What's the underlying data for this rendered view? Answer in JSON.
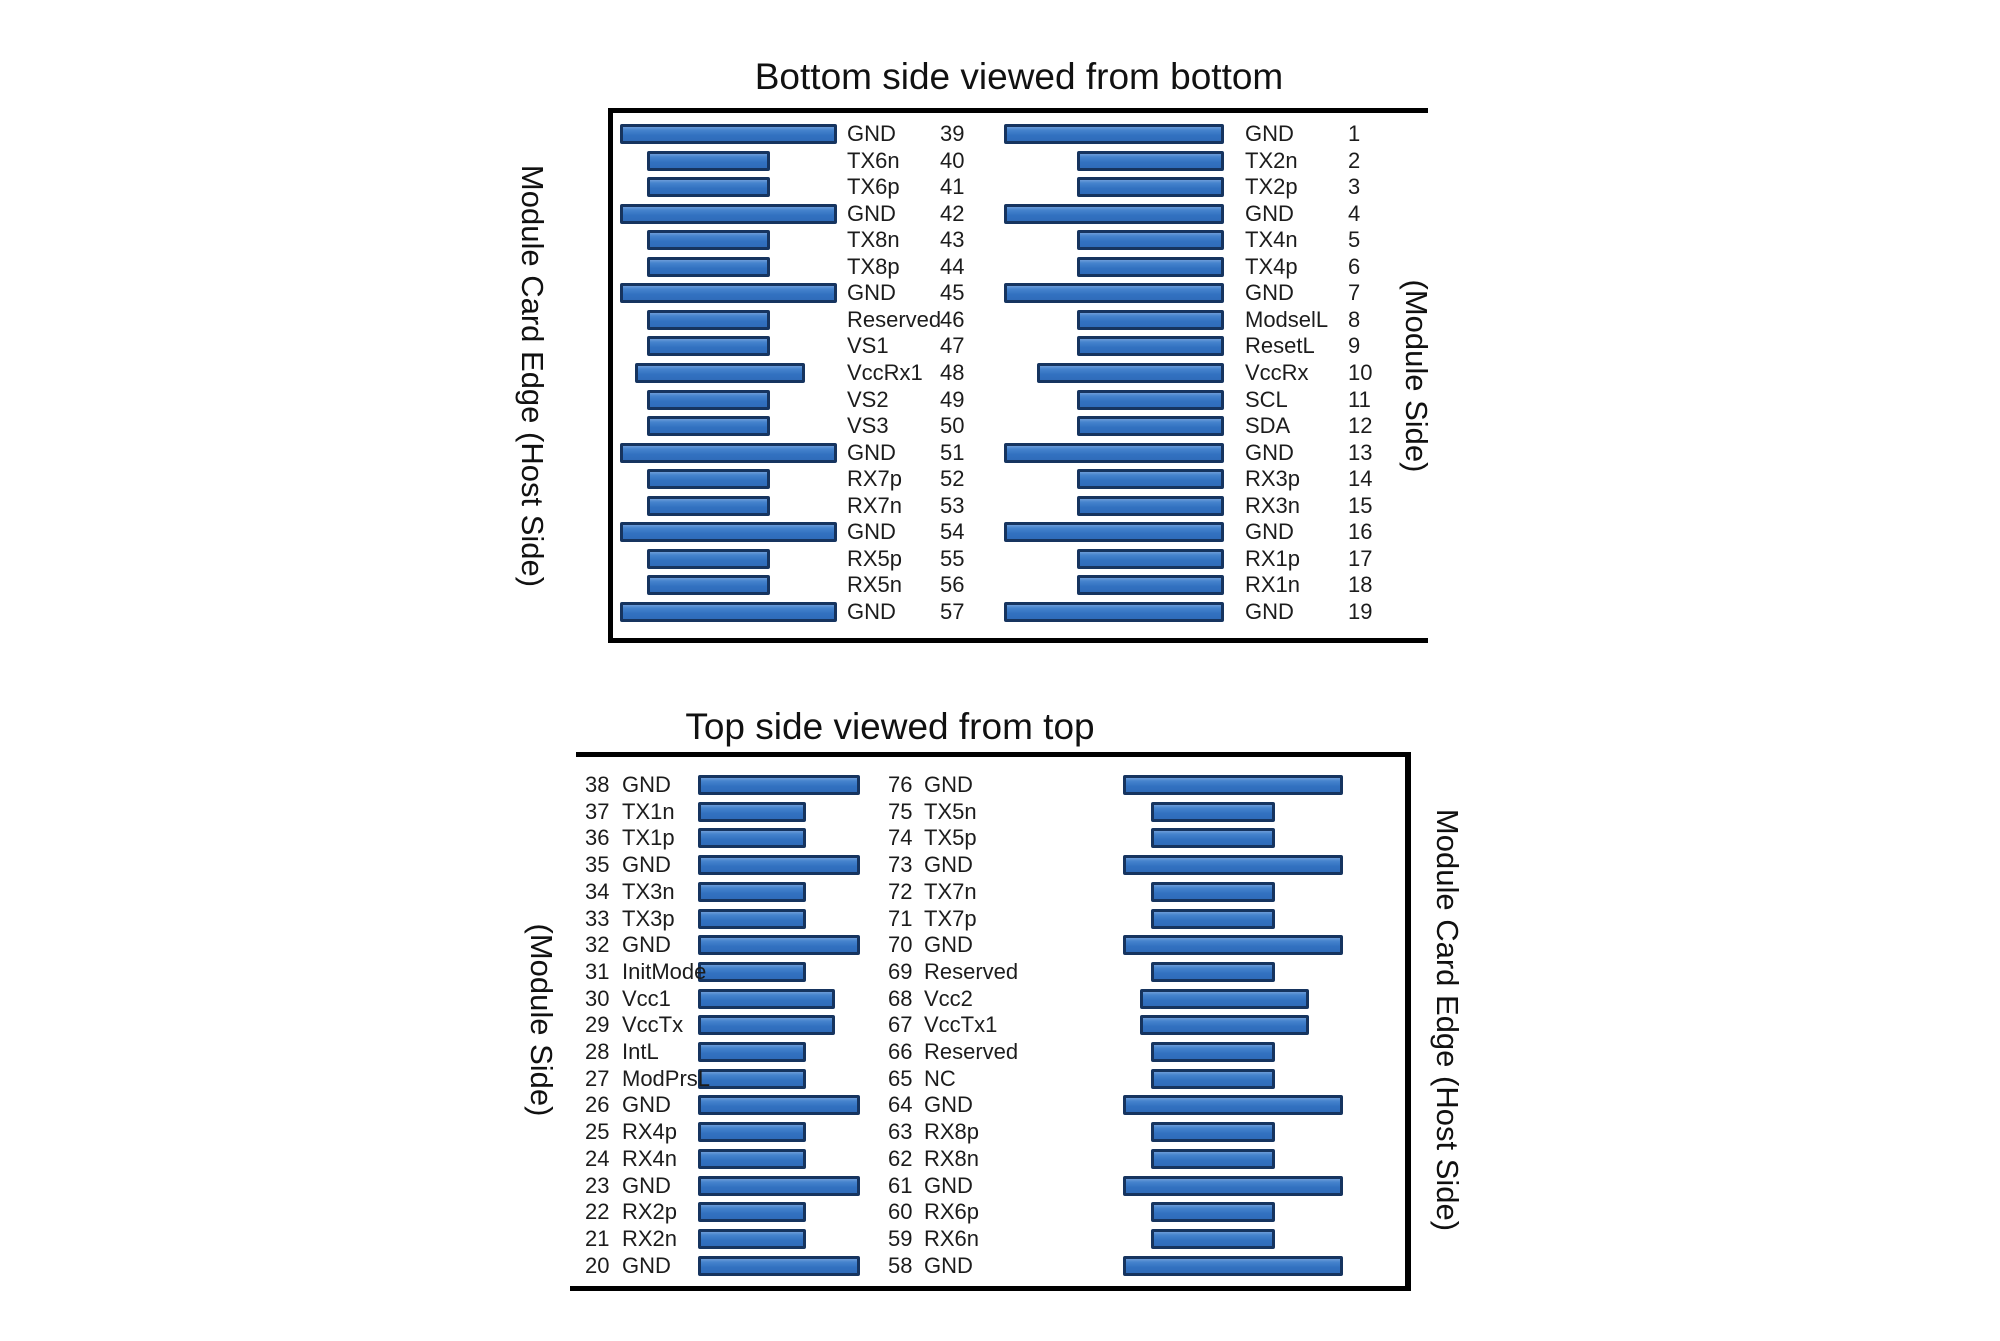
{
  "figure": {
    "description": "Connector card edge pinout, two views"
  },
  "colors": {
    "bar_fill": "#3271c0",
    "bar_border": "#16345f",
    "line": "#000000"
  },
  "diagrams": [
    {
      "title": "Bottom side viewed from bottom",
      "left_edge_label": "Module Card Edge (Host Side)",
      "right_edge_label": "(Module Side)",
      "left_pins": [
        {
          "num": "39",
          "label": "GND",
          "type": "gnd"
        },
        {
          "num": "40",
          "label": "TX6n",
          "type": "sig"
        },
        {
          "num": "41",
          "label": "TX6p",
          "type": "sig"
        },
        {
          "num": "42",
          "label": "GND",
          "type": "gnd"
        },
        {
          "num": "43",
          "label": "TX8n",
          "type": "sig"
        },
        {
          "num": "44",
          "label": "TX8p",
          "type": "sig"
        },
        {
          "num": "45",
          "label": "GND",
          "type": "gnd"
        },
        {
          "num": "46",
          "label": "Reserved",
          "type": "sig"
        },
        {
          "num": "47",
          "label": "VS1",
          "type": "sig"
        },
        {
          "num": "48",
          "label": "VccRx1",
          "type": "vcc"
        },
        {
          "num": "49",
          "label": "VS2",
          "type": "sig"
        },
        {
          "num": "50",
          "label": "VS3",
          "type": "sig"
        },
        {
          "num": "51",
          "label": "GND",
          "type": "gnd"
        },
        {
          "num": "52",
          "label": "RX7p",
          "type": "sig"
        },
        {
          "num": "53",
          "label": "RX7n",
          "type": "sig"
        },
        {
          "num": "54",
          "label": "GND",
          "type": "gnd"
        },
        {
          "num": "55",
          "label": "RX5p",
          "type": "sig"
        },
        {
          "num": "56",
          "label": "RX5n",
          "type": "sig"
        },
        {
          "num": "57",
          "label": "GND",
          "type": "gnd"
        }
      ],
      "right_pins": [
        {
          "num": "1",
          "label": "GND",
          "type": "gnd"
        },
        {
          "num": "2",
          "label": "TX2n",
          "type": "sig"
        },
        {
          "num": "3",
          "label": "TX2p",
          "type": "sig"
        },
        {
          "num": "4",
          "label": "GND",
          "type": "gnd"
        },
        {
          "num": "5",
          "label": "TX4n",
          "type": "sig"
        },
        {
          "num": "6",
          "label": "TX4p",
          "type": "sig"
        },
        {
          "num": "7",
          "label": "GND",
          "type": "gnd"
        },
        {
          "num": "8",
          "label": "ModselL",
          "type": "sig"
        },
        {
          "num": "9",
          "label": "ResetL",
          "type": "sig"
        },
        {
          "num": "10",
          "label": "VccRx",
          "type": "vcc"
        },
        {
          "num": "11",
          "label": "SCL",
          "type": "sig"
        },
        {
          "num": "12",
          "label": "SDA",
          "type": "sig"
        },
        {
          "num": "13",
          "label": "GND",
          "type": "gnd"
        },
        {
          "num": "14",
          "label": "RX3p",
          "type": "sig"
        },
        {
          "num": "15",
          "label": "RX3n",
          "type": "sig"
        },
        {
          "num": "16",
          "label": "GND",
          "type": "gnd"
        },
        {
          "num": "17",
          "label": "RX1p",
          "type": "sig"
        },
        {
          "num": "18",
          "label": "RX1n",
          "type": "sig"
        },
        {
          "num": "19",
          "label": "GND",
          "type": "gnd"
        }
      ]
    },
    {
      "title": "Top side viewed from top",
      "left_edge_label": "(Module Side)",
      "right_edge_label": "Module Card Edge (Host Side)",
      "left_pins": [
        {
          "num": "38",
          "label": "GND",
          "type": "gnd"
        },
        {
          "num": "37",
          "label": "TX1n",
          "type": "sig"
        },
        {
          "num": "36",
          "label": "TX1p",
          "type": "sig"
        },
        {
          "num": "35",
          "label": "GND",
          "type": "gnd"
        },
        {
          "num": "34",
          "label": "TX3n",
          "type": "sig"
        },
        {
          "num": "33",
          "label": "TX3p",
          "type": "sig"
        },
        {
          "num": "32",
          "label": "GND",
          "type": "gnd"
        },
        {
          "num": "31",
          "label": "InitMode",
          "type": "sig"
        },
        {
          "num": "30",
          "label": "Vcc1",
          "type": "vcc"
        },
        {
          "num": "29",
          "label": "VccTx",
          "type": "vcc"
        },
        {
          "num": "28",
          "label": "IntL",
          "type": "sig"
        },
        {
          "num": "27",
          "label": "ModPrsL",
          "type": "sig"
        },
        {
          "num": "26",
          "label": "GND",
          "type": "gnd"
        },
        {
          "num": "25",
          "label": "RX4p",
          "type": "sig"
        },
        {
          "num": "24",
          "label": "RX4n",
          "type": "sig"
        },
        {
          "num": "23",
          "label": "GND",
          "type": "gnd"
        },
        {
          "num": "22",
          "label": "RX2p",
          "type": "sig"
        },
        {
          "num": "21",
          "label": "RX2n",
          "type": "sig"
        },
        {
          "num": "20",
          "label": "GND",
          "type": "gnd"
        }
      ],
      "right_pins": [
        {
          "num": "76",
          "label": "GND",
          "type": "gnd"
        },
        {
          "num": "75",
          "label": "TX5n",
          "type": "sig"
        },
        {
          "num": "74",
          "label": "TX5p",
          "type": "sig"
        },
        {
          "num": "73",
          "label": "GND",
          "type": "gnd"
        },
        {
          "num": "72",
          "label": "TX7n",
          "type": "sig"
        },
        {
          "num": "71",
          "label": "TX7p",
          "type": "sig"
        },
        {
          "num": "70",
          "label": "GND",
          "type": "gnd"
        },
        {
          "num": "69",
          "label": "Reserved",
          "type": "sig"
        },
        {
          "num": "68",
          "label": "Vcc2",
          "type": "vcc"
        },
        {
          "num": "67",
          "label": "VccTx1",
          "type": "vcc"
        },
        {
          "num": "66",
          "label": "Reserved",
          "type": "sig"
        },
        {
          "num": "65",
          "label": "NC",
          "type": "sig"
        },
        {
          "num": "64",
          "label": "GND",
          "type": "gnd"
        },
        {
          "num": "63",
          "label": "RX8p",
          "type": "sig"
        },
        {
          "num": "62",
          "label": "RX8n",
          "type": "sig"
        },
        {
          "num": "61",
          "label": "GND",
          "type": "gnd"
        },
        {
          "num": "60",
          "label": "RX6p",
          "type": "sig"
        },
        {
          "num": "59",
          "label": "RX6n",
          "type": "sig"
        },
        {
          "num": "58",
          "label": "GND",
          "type": "gnd"
        }
      ]
    }
  ]
}
